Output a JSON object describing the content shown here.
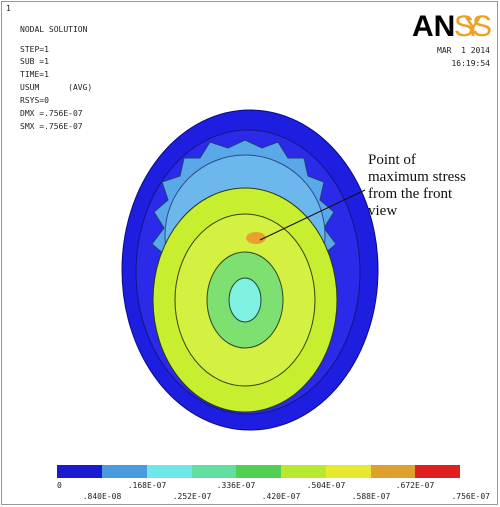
{
  "header": {
    "window_number": "1",
    "title": "NODAL SOLUTION",
    "info": [
      "STEP=1",
      "SUB =1",
      "TIME=1",
      "USUM      (AVG)",
      "RSYS=0",
      "DMX =.756E-07",
      "SMX =.756E-07"
    ],
    "logo": {
      "left": "AN",
      "right": "SYS"
    },
    "date": "MAR  1 2014",
    "time": "16:19:54"
  },
  "annotation": [
    "Point of",
    "maximum stress",
    "from the front",
    "view"
  ],
  "legend": {
    "labels": [
      "0",
      ".840E-08",
      ".168E-07",
      ".252E-07",
      ".336E-07",
      ".420E-07",
      ".504E-07",
      ".588E-07",
      ".672E-07",
      ".756E-07"
    ]
  }
}
